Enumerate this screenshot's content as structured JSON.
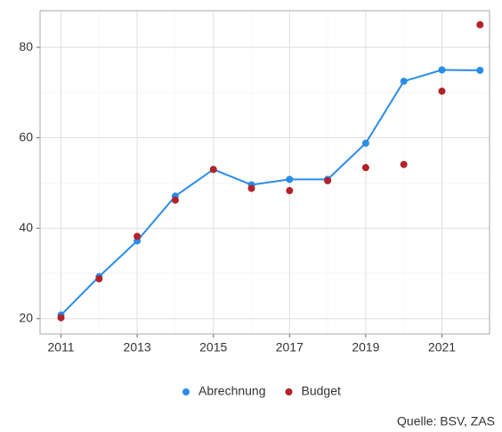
{
  "chart_data": {
    "type": "line",
    "x": [
      2011,
      2012,
      2013,
      2014,
      2015,
      2016,
      2017,
      2018,
      2019,
      2020,
      2021,
      2022
    ],
    "series": [
      {
        "name": "Abrechnung",
        "color": "#2b8ce8",
        "mode": "lines+markers",
        "values": [
          20.8,
          29.3,
          37.2,
          47.1,
          53.0,
          49.6,
          50.8,
          50.8,
          58.8,
          72.5,
          75.0,
          74.9
        ]
      },
      {
        "name": "Budget",
        "color": "#b22228",
        "mode": "markers",
        "values": [
          20.2,
          28.8,
          38.2,
          46.2,
          53.0,
          48.8,
          48.3,
          50.5,
          53.4,
          54.1,
          70.3,
          85.0
        ]
      }
    ],
    "xlim": [
      2010.45,
      2022.25
    ],
    "xticks": [
      2011,
      2013,
      2015,
      2017,
      2019,
      2021
    ],
    "ylim": [
      16.6,
      88.1
    ],
    "yticks": [
      20,
      40,
      60,
      80
    ],
    "grid": true,
    "legend": "bottom",
    "caption": "Quelle: BSV, ZAS"
  }
}
